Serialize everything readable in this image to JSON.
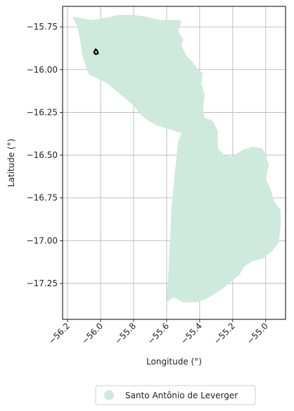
{
  "chart_data": {
    "type": "map",
    "title": "",
    "xlabel": "Longitude (°)",
    "ylabel": "Latitude (°)",
    "xlim": [
      -56.23,
      -54.88
    ],
    "ylim": [
      -17.46,
      -15.63
    ],
    "grid": true,
    "x_ticks": [
      -56.2,
      -56.0,
      -55.8,
      -55.6,
      -55.4,
      -55.2,
      -55.0
    ],
    "x_tick_labels": [
      "−56.2",
      "−56.0",
      "−55.8",
      "−55.6",
      "−55.4",
      "−55.2",
      "−55.0"
    ],
    "y_ticks": [
      -15.75,
      -16.0,
      -16.25,
      -16.5,
      -16.75,
      -17.0,
      -17.25
    ],
    "y_tick_labels": [
      "−15.75",
      "−16.00",
      "−16.25",
      "−16.50",
      "−16.75",
      "−17.00",
      "−17.25"
    ],
    "legend": {
      "placement": "bottom-center",
      "entries": [
        {
          "label": "Santo Antônio de Leverger",
          "color": "#cdeadc"
        }
      ]
    },
    "region": {
      "name": "Santo Antônio de Leverger",
      "fill": "#cdeadc",
      "outline": [
        [
          -56.17,
          -15.69
        ],
        [
          -56.05,
          -15.71
        ],
        [
          -55.98,
          -15.7
        ],
        [
          -55.89,
          -15.68
        ],
        [
          -55.8,
          -15.68
        ],
        [
          -55.73,
          -15.69
        ],
        [
          -55.64,
          -15.71
        ],
        [
          -55.51,
          -15.71
        ],
        [
          -55.53,
          -15.78
        ],
        [
          -55.5,
          -15.82
        ],
        [
          -55.51,
          -15.86
        ],
        [
          -55.48,
          -15.92
        ],
        [
          -55.44,
          -15.96
        ],
        [
          -55.41,
          -16.0
        ],
        [
          -55.38,
          -16.02
        ],
        [
          -55.39,
          -16.08
        ],
        [
          -55.37,
          -16.15
        ],
        [
          -55.38,
          -16.22
        ],
        [
          -55.37,
          -16.28
        ],
        [
          -55.32,
          -16.3
        ],
        [
          -55.29,
          -16.36
        ],
        [
          -55.29,
          -16.46
        ],
        [
          -55.25,
          -16.5
        ],
        [
          -55.2,
          -16.51
        ],
        [
          -55.14,
          -16.47
        ],
        [
          -55.08,
          -16.45
        ],
        [
          -55.02,
          -16.46
        ],
        [
          -55.0,
          -16.5
        ],
        [
          -54.98,
          -16.56
        ],
        [
          -55.0,
          -16.64
        ],
        [
          -54.97,
          -16.7
        ],
        [
          -54.95,
          -16.77
        ],
        [
          -54.91,
          -16.82
        ],
        [
          -54.91,
          -16.9
        ],
        [
          -54.92,
          -17.01
        ],
        [
          -54.96,
          -17.06
        ],
        [
          -55.01,
          -17.1
        ],
        [
          -55.08,
          -17.12
        ],
        [
          -55.13,
          -17.15
        ],
        [
          -55.16,
          -17.2
        ],
        [
          -55.21,
          -17.24
        ],
        [
          -55.26,
          -17.28
        ],
        [
          -55.31,
          -17.31
        ],
        [
          -55.36,
          -17.34
        ],
        [
          -55.42,
          -17.36
        ],
        [
          -55.5,
          -17.36
        ],
        [
          -55.56,
          -17.33
        ],
        [
          -55.6,
          -17.36
        ],
        [
          -55.59,
          -17.2
        ],
        [
          -55.58,
          -17.0
        ],
        [
          -55.57,
          -16.8
        ],
        [
          -55.55,
          -16.6
        ],
        [
          -55.53,
          -16.42
        ],
        [
          -55.51,
          -16.37
        ],
        [
          -55.58,
          -16.35
        ],
        [
          -55.65,
          -16.33
        ],
        [
          -55.71,
          -16.3
        ],
        [
          -55.76,
          -16.26
        ],
        [
          -55.8,
          -16.21
        ],
        [
          -55.86,
          -16.16
        ],
        [
          -55.91,
          -16.12
        ],
        [
          -55.96,
          -16.08
        ],
        [
          -56.02,
          -16.05
        ],
        [
          -56.07,
          -16.03
        ],
        [
          -56.09,
          -15.98
        ],
        [
          -56.11,
          -15.92
        ],
        [
          -56.12,
          -15.85
        ],
        [
          -56.13,
          -15.8
        ],
        [
          -56.14,
          -15.75
        ],
        [
          -56.17,
          -15.69
        ]
      ]
    },
    "marker": {
      "outline": [
        [
          -56.04,
          -15.9
        ],
        [
          -56.03,
          -15.88
        ],
        [
          -56.02,
          -15.89
        ],
        [
          -56.015,
          -15.905
        ],
        [
          -56.03,
          -15.91
        ],
        [
          -56.04,
          -15.9
        ]
      ],
      "color": "#000000"
    }
  }
}
